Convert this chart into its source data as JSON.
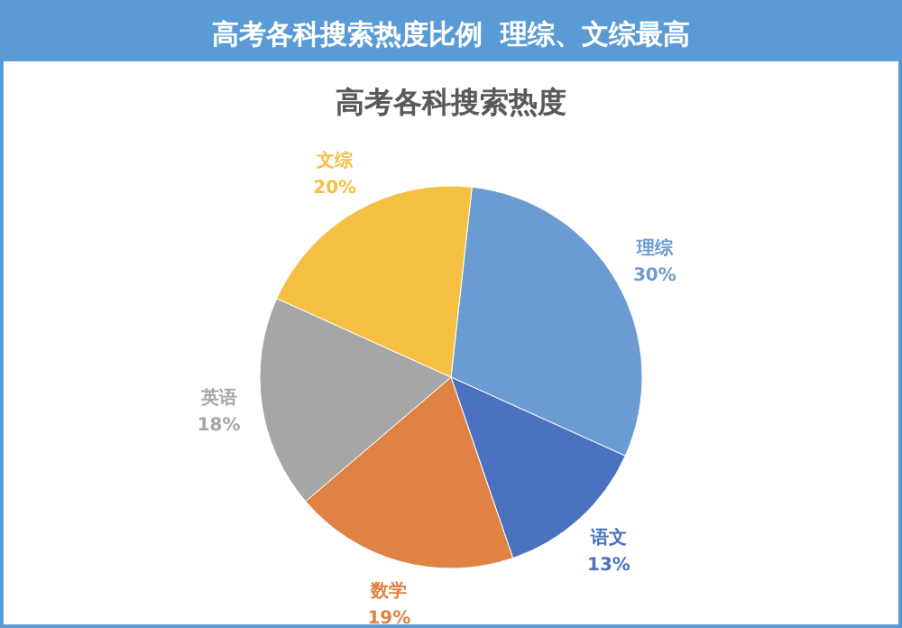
{
  "chart_data": {
    "type": "pie",
    "title": "高考各科搜索热度比例  理综、文综最高",
    "subtitle": "高考各科搜索热度",
    "categories": [
      "理综",
      "语文",
      "数学",
      "英语",
      "文综"
    ],
    "values": [
      30,
      13,
      19,
      18,
      20
    ],
    "colors": [
      "#6a9bd2",
      "#4a72bf",
      "#e08244",
      "#a6a6a6",
      "#f5bf42"
    ],
    "value_labels": [
      "30%",
      "13%",
      "19%",
      "18%",
      "20%"
    ]
  }
}
